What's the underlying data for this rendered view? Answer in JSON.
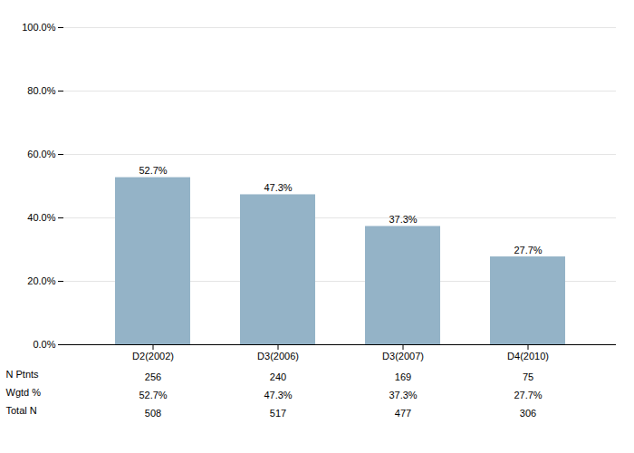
{
  "chart_data": {
    "type": "bar",
    "categories": [
      "D2(2002)",
      "D3(2006)",
      "D3(2007)",
      "D4(2010)"
    ],
    "values": [
      52.7,
      47.3,
      37.3,
      27.7
    ],
    "value_labels": [
      "52.7%",
      "47.3%",
      "37.3%",
      "27.7%"
    ],
    "data_labels": true,
    "color": "#94b3c7",
    "ylim": [
      0,
      100
    ],
    "yticks": [
      {
        "value": 0,
        "label": "0.0%"
      },
      {
        "value": 20,
        "label": "20.0%"
      },
      {
        "value": 40,
        "label": "40.0%"
      },
      {
        "value": 60,
        "label": "60.0%"
      },
      {
        "value": 80,
        "label": "80.0%"
      },
      {
        "value": 100,
        "label": "100.0%"
      }
    ],
    "grid": true,
    "table": [
      {
        "name": "N Ptnts",
        "values": [
          256,
          240,
          169,
          75
        ]
      },
      {
        "name": "Wgtd %",
        "values": [
          52.7,
          47.3,
          37.3,
          27.7
        ],
        "value_labels": [
          "52.7%",
          "47.3%",
          "37.3%",
          "27.7%"
        ]
      },
      {
        "name": "Total N",
        "values": [
          508,
          517,
          477,
          306
        ]
      }
    ]
  }
}
